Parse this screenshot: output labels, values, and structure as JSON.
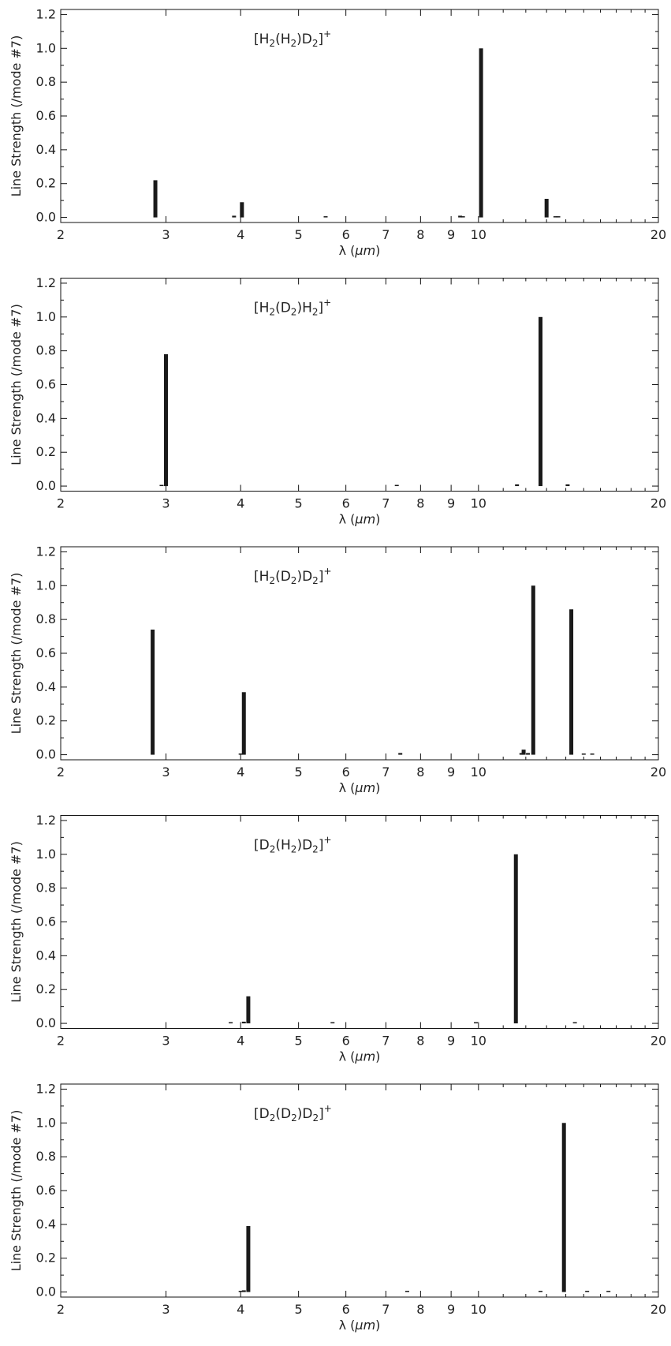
{
  "chart_data": [
    {
      "type": "bar",
      "annotation": [
        "[H",
        "2",
        "(H",
        "2",
        ")D",
        "2",
        "]",
        "+"
      ],
      "xlabel_main": "λ (",
      "xlabel_unit": "μm",
      "xlabel_close": ")",
      "ylabel": "Line Strength (/mode #7)",
      "x_scale": "log",
      "xlim": [
        2,
        20
      ],
      "ylim": [
        -0.03,
        1.23
      ],
      "x_ticks": [
        2,
        3,
        4,
        5,
        6,
        7,
        8,
        9,
        10,
        20
      ],
      "y_ticks": [
        "0.0",
        "0.2",
        "0.4",
        "0.6",
        "0.8",
        "1.0",
        "1.2"
      ],
      "x": [
        2.88,
        3.9,
        4.02,
        5.55,
        9.32,
        9.42,
        10.1,
        13.0,
        13.45,
        13.6
      ],
      "values": [
        0.22,
        0.01,
        0.09,
        0.005,
        0.01,
        0.005,
        1.0,
        0.11,
        0.005,
        0.005
      ]
    },
    {
      "type": "bar",
      "annotation": [
        "[H",
        "2",
        "(D",
        "2",
        ")H",
        "2",
        "]",
        "+"
      ],
      "xlabel_main": "λ (",
      "xlabel_unit": "μm",
      "xlabel_close": ")",
      "ylabel": "Line Strength (/mode #7)",
      "x_scale": "log",
      "xlim": [
        2,
        20
      ],
      "ylim": [
        -0.03,
        1.23
      ],
      "x_ticks": [
        2,
        3,
        4,
        5,
        6,
        7,
        8,
        9,
        10,
        20
      ],
      "y_ticks": [
        "0.0",
        "0.2",
        "0.4",
        "0.6",
        "0.8",
        "1.0",
        "1.2"
      ],
      "x": [
        2.95,
        3.0,
        7.3,
        11.6,
        12.7,
        14.1
      ],
      "values": [
        0.005,
        0.78,
        0.005,
        0.01,
        1.0,
        0.01
      ]
    },
    {
      "type": "bar",
      "annotation": [
        "[H",
        "2",
        "(D",
        "2",
        ")D",
        "2",
        "]",
        "+"
      ],
      "xlabel_main": "λ (",
      "xlabel_unit": "μm",
      "xlabel_close": ")",
      "ylabel": "Line Strength (/mode #7)",
      "x_scale": "log",
      "xlim": [
        2,
        20
      ],
      "ylim": [
        -0.03,
        1.23
      ],
      "x_ticks": [
        2,
        3,
        4,
        5,
        6,
        7,
        8,
        9,
        10,
        20
      ],
      "y_ticks": [
        "0.0",
        "0.2",
        "0.4",
        "0.6",
        "0.8",
        "1.0",
        "1.2"
      ],
      "x": [
        2.85,
        4.0,
        4.05,
        7.4,
        11.8,
        11.9,
        12.1,
        12.35,
        14.3,
        15.0,
        15.5
      ],
      "values": [
        0.74,
        0.005,
        0.37,
        0.01,
        0.01,
        0.03,
        0.01,
        1.0,
        0.86,
        0.005,
        0.005
      ]
    },
    {
      "type": "bar",
      "annotation": [
        "[D",
        "2",
        "(H",
        "2",
        ")D",
        "2",
        "]",
        "+"
      ],
      "xlabel_main": "λ (",
      "xlabel_unit": "μm",
      "xlabel_close": ")",
      "ylabel": "Line Strength (/mode #7)",
      "x_scale": "log",
      "xlim": [
        2,
        20
      ],
      "ylim": [
        -0.03,
        1.23
      ],
      "x_ticks": [
        2,
        3,
        4,
        5,
        6,
        7,
        8,
        9,
        10,
        20
      ],
      "y_ticks": [
        "0.0",
        "0.2",
        "0.4",
        "0.6",
        "0.8",
        "1.0",
        "1.2"
      ],
      "x": [
        3.85,
        4.05,
        4.12,
        5.7,
        9.9,
        11.55,
        14.5
      ],
      "values": [
        0.005,
        0.01,
        0.16,
        0.005,
        0.005,
        1.0,
        0.005
      ]
    },
    {
      "type": "bar",
      "annotation": [
        "[D",
        "2",
        "(D",
        "2",
        ")D",
        "2",
        "]",
        "+"
      ],
      "xlabel_main": "λ (",
      "xlabel_unit": "μm",
      "xlabel_close": ")",
      "ylabel": "Line Strength (/mode #7)",
      "x_scale": "log",
      "xlim": [
        2,
        20
      ],
      "ylim": [
        -0.03,
        1.23
      ],
      "x_ticks": [
        2,
        3,
        4,
        5,
        6,
        7,
        8,
        9,
        10,
        20
      ],
      "y_ticks": [
        "0.0",
        "0.2",
        "0.4",
        "0.6",
        "0.8",
        "1.0",
        "1.2"
      ],
      "x": [
        4.0,
        4.05,
        4.12,
        7.6,
        12.7,
        13.9,
        15.2,
        16.5
      ],
      "values": [
        0.005,
        0.01,
        0.39,
        0.005,
        0.005,
        1.0,
        0.005,
        0.005
      ]
    }
  ]
}
